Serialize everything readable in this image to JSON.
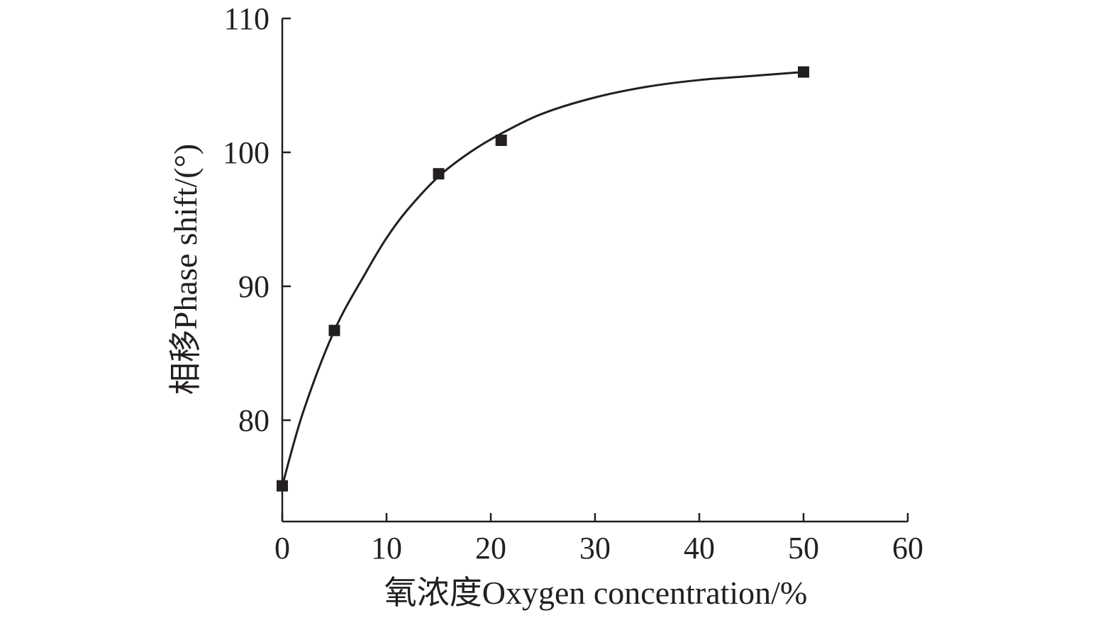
{
  "chart_data": {
    "type": "scatter",
    "title": "",
    "xlabel": "氧浓度Oxygen concentration/%",
    "ylabel": "相移Phase shift/(°)",
    "xlim": [
      0,
      60
    ],
    "ylim": [
      75,
      110
    ],
    "xticks": [
      0,
      10,
      20,
      30,
      40,
      50,
      60
    ],
    "yticks": [
      80,
      90,
      100,
      110
    ],
    "grid": false,
    "legend": "none",
    "colors": {
      "ink": "#231f20"
    },
    "series": [
      {
        "marker": "square",
        "x": [
          0,
          5,
          15,
          21,
          50
        ],
        "y": [
          75.1,
          86.7,
          98.4,
          100.9,
          106.0
        ]
      }
    ],
    "fit_curve": {
      "style": "solid",
      "x": [
        0,
        2,
        5,
        8,
        10,
        12,
        15,
        18,
        21,
        25,
        30,
        35,
        40,
        45,
        50
      ],
      "y": [
        75.1,
        80.6,
        86.7,
        91.0,
        93.6,
        95.7,
        98.2,
        100.0,
        101.4,
        102.9,
        104.1,
        104.9,
        105.4,
        105.7,
        106.0
      ]
    }
  }
}
